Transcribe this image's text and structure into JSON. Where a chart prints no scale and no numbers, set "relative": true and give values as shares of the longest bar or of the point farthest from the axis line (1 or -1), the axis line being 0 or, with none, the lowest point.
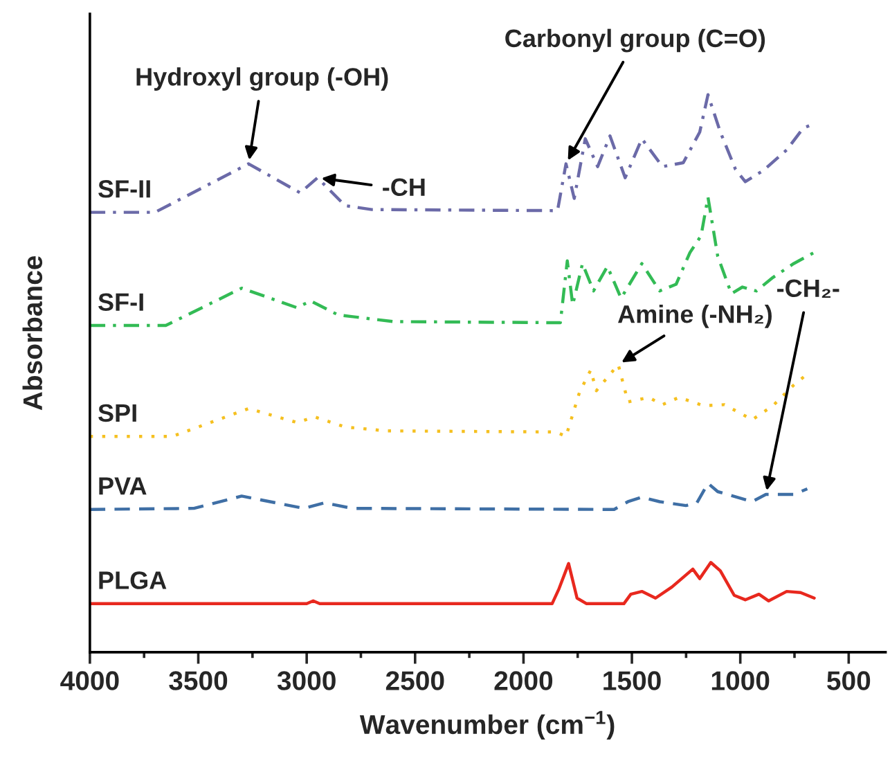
{
  "chart_data": {
    "type": "line",
    "relative": true,
    "xlabel": "Wavenumber (cm$^{−1}$)",
    "ylabel": "Absorbance",
    "xlim": [
      4000,
      330
    ],
    "xticks": [
      4000,
      3500,
      3000,
      2500,
      2000,
      1500,
      1000,
      500
    ],
    "grid": false,
    "legend": false,
    "tick_labels": "x",
    "series": [
      {
        "name": "SF-II",
        "color": "#6b6aa8",
        "line_style": "dashdot",
        "x": [
          4000,
          3700,
          3268,
          3030,
          2950,
          2823,
          2700,
          1843,
          1804,
          1766,
          1715,
          1658,
          1601,
          1531,
          1454,
          1359,
          1263,
          1187,
          1149,
          1092,
          1022,
          977,
          894,
          786,
          710,
          659
        ],
        "values": [
          0.789,
          0.789,
          0.876,
          0.824,
          0.851,
          0.801,
          0.794,
          0.792,
          0.876,
          0.814,
          0.921,
          0.871,
          0.926,
          0.851,
          0.921,
          0.871,
          0.878,
          0.933,
          1.0,
          0.933,
          0.866,
          0.844,
          0.864,
          0.901,
          0.94,
          0.948
        ]
      },
      {
        "name": "SF-I",
        "color": "#33bb55",
        "line_style": "dashdot",
        "x": [
          4000,
          3650,
          3300,
          3045,
          2982,
          2855,
          2600,
          1830,
          1798,
          1773,
          1728,
          1677,
          1613,
          1550,
          1454,
          1372,
          1296,
          1232,
          1181,
          1149,
          1104,
          1041,
          990,
          926,
          850,
          754,
          659
        ],
        "values": [
          0.586,
          0.586,
          0.653,
          0.618,
          0.63,
          0.605,
          0.593,
          0.591,
          0.702,
          0.623,
          0.697,
          0.648,
          0.692,
          0.635,
          0.697,
          0.648,
          0.66,
          0.717,
          0.747,
          0.816,
          0.71,
          0.643,
          0.655,
          0.648,
          0.672,
          0.697,
          0.717
        ]
      },
      {
        "name": "SPI",
        "color": "#f5c020",
        "line_style": "dotted",
        "x": [
          4000,
          3620,
          3268,
          3045,
          2963,
          2823,
          2632,
          1850,
          1804,
          1741,
          1690,
          1664,
          1563,
          1518,
          1423,
          1359,
          1283,
          1168,
          1073,
          945,
          850,
          754,
          691
        ],
        "values": [
          0.387,
          0.387,
          0.437,
          0.412,
          0.422,
          0.404,
          0.397,
          0.395,
          0.387,
          0.467,
          0.506,
          0.469,
          0.516,
          0.449,
          0.457,
          0.444,
          0.457,
          0.442,
          0.444,
          0.417,
          0.442,
          0.479,
          0.499
        ]
      },
      {
        "name": "PVA",
        "color": "#3f6fa5",
        "line_style": "dashed",
        "x": [
          4000,
          3520,
          3300,
          3014,
          2918,
          2791,
          1582,
          1518,
          1454,
          1372,
          1251,
          1200,
          1149,
          1104,
          945,
          882,
          754,
          691
        ],
        "values": [
          0.256,
          0.258,
          0.28,
          0.258,
          0.268,
          0.258,
          0.256,
          0.27,
          0.278,
          0.27,
          0.263,
          0.268,
          0.303,
          0.288,
          0.27,
          0.283,
          0.283,
          0.293
        ]
      },
      {
        "name": "PLGA",
        "color": "#e8281e",
        "line_style": "solid",
        "x": [
          4000,
          3000,
          2970,
          2940,
          1868,
          1836,
          1792,
          1753,
          1709,
          1537,
          1505,
          1454,
          1391,
          1315,
          1219,
          1187,
          1136,
          1092,
          1028,
          977,
          914,
          869,
          786,
          722,
          659
        ],
        "values": [
          0.087,
          0.087,
          0.092,
          0.087,
          0.087,
          0.114,
          0.159,
          0.097,
          0.087,
          0.087,
          0.104,
          0.109,
          0.097,
          0.117,
          0.149,
          0.132,
          0.161,
          0.146,
          0.102,
          0.094,
          0.104,
          0.092,
          0.109,
          0.107,
          0.097
        ]
      }
    ],
    "annotations": [
      {
        "text": "Hydroxyl group (-OH)",
        "x": 3268,
        "y": 0.876
      },
      {
        "text": "-CH",
        "x": 2950,
        "y": 0.851
      },
      {
        "text": "Carbonyl group (C=O)",
        "x": 1804,
        "y": 0.876
      },
      {
        "text": "Amine (-NH₂)",
        "x": 1563,
        "y": 0.516
      },
      {
        "text": "-CH₂-",
        "x": 882,
        "y": 0.283
      }
    ]
  }
}
